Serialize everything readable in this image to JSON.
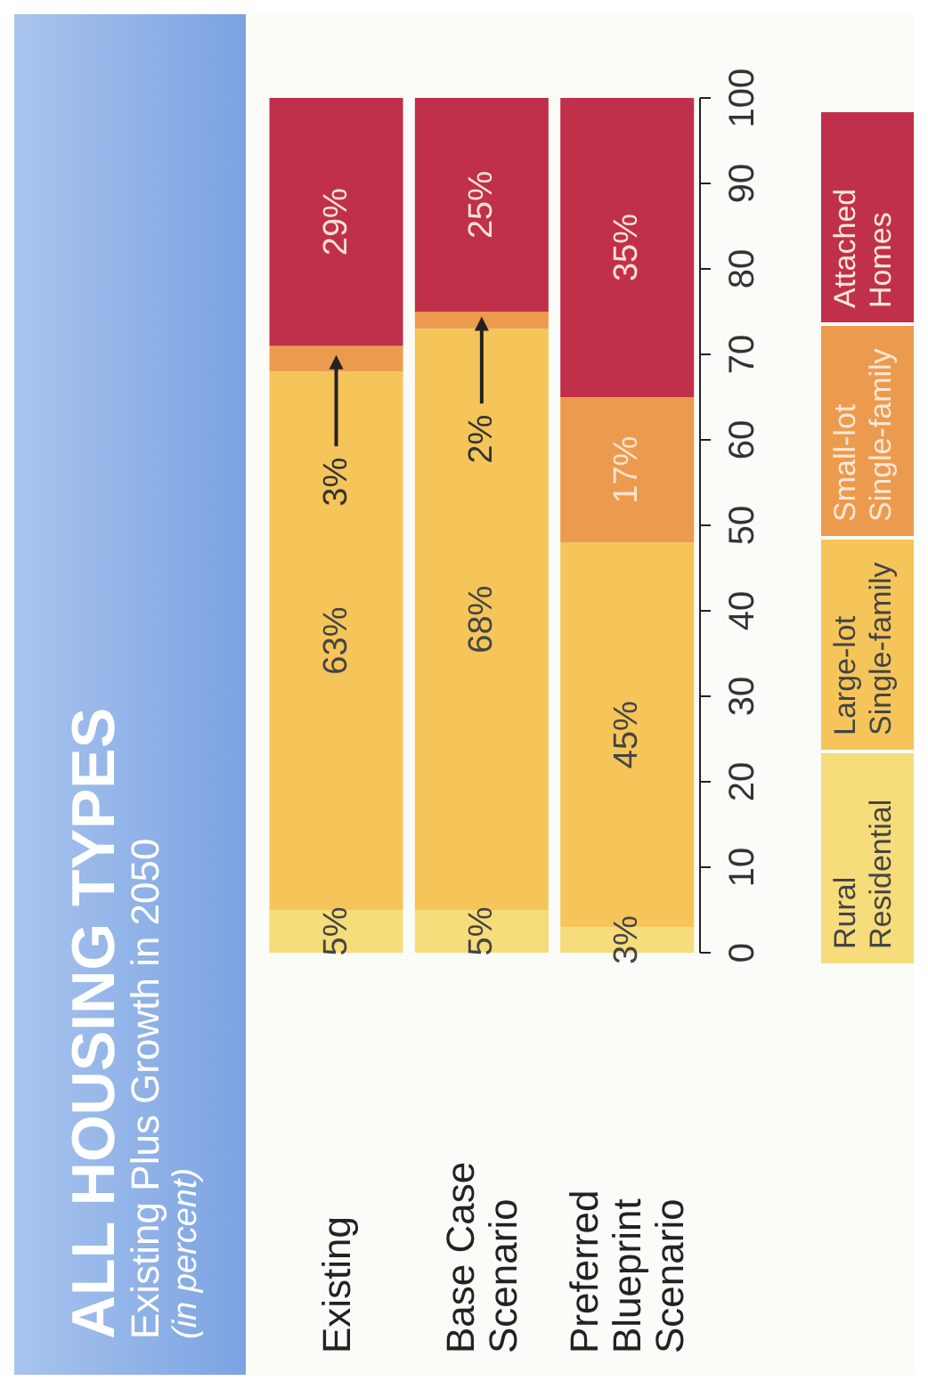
{
  "chart_data": {
    "type": "bar",
    "stacked": true,
    "title": "ALL HOUSING TYPES",
    "subtitle": "Existing Plus Growth in 2050",
    "annotations": [
      "(in percent)"
    ],
    "categories": [
      "Existing",
      "Base Case Scenario",
      "Preferred Blueprint Scenario"
    ],
    "series": [
      {
        "name": "Rural Residential",
        "color": "#f6dc7a",
        "values": [
          5,
          5,
          3
        ],
        "value_labels": [
          "5%",
          "5%",
          "3%"
        ]
      },
      {
        "name": "Large-lot Single-family",
        "color": "#f5c55a",
        "values": [
          63,
          68,
          45
        ],
        "value_labels": [
          "63%",
          "68%",
          "45%"
        ]
      },
      {
        "name": "Small-lot Single-family",
        "color": "#ec9b4e",
        "values": [
          3,
          2,
          17
        ],
        "value_labels": [
          "3%",
          "2%",
          "17%"
        ]
      },
      {
        "name": "Attached Homes",
        "color": "#c0304a",
        "values": [
          29,
          25,
          35
        ],
        "value_labels": [
          "29%",
          "25%",
          "35%"
        ]
      }
    ],
    "ylim": [
      0,
      100
    ],
    "yticks": [
      0,
      10,
      20,
      30,
      40,
      50,
      60,
      70,
      80,
      90,
      100
    ],
    "legend": "right"
  }
}
